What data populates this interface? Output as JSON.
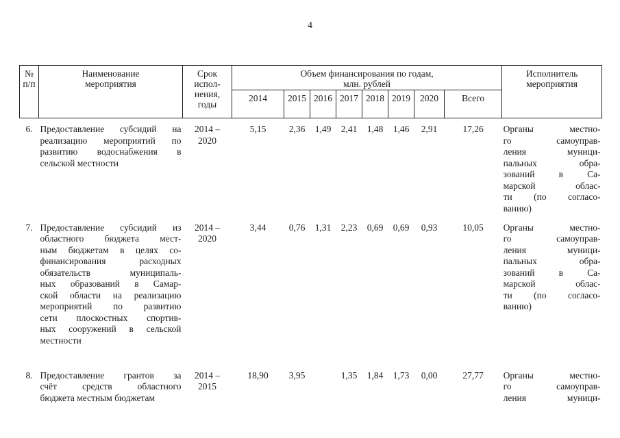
{
  "page_number": "4",
  "table": {
    "header": {
      "col_num": "№\nп/п",
      "col_name": "Наименование\nмероприятия",
      "col_period": "Срок\nиспол-\nнения,\nгоды",
      "col_funding_group": "Объем финансирования по годам,\nмлн. рублей",
      "years": [
        "2014",
        "2015",
        "2016",
        "2017",
        "2018",
        "2019",
        "2020",
        "Всего"
      ],
      "col_executor": "Исполнитель\nмероприятия"
    },
    "rows": [
      {
        "num": "6.",
        "name_lines": [
          "Предоставление субсидий на",
          "реализацию мероприятий по",
          "развитию водоснабжения в",
          "сельской местности"
        ],
        "period": "2014 –\n2020",
        "values": [
          "5,15",
          "2,36",
          "1,49",
          "2,41",
          "1,48",
          "1,46",
          "2,91",
          "17,26"
        ],
        "executor_lines": [
          "Органы местно-",
          "го самоуправ-",
          "ления муници-",
          "пальных обра-",
          "зований в Са-",
          "марской облас-",
          "ти (по согласо-",
          "ванию)"
        ],
        "executor_truncated": false
      },
      {
        "num": "7.",
        "name_lines": [
          "Предоставление субсидий из",
          "областного бюджета мест-",
          "ным бюджетам в целях со-",
          "финансирования расходных",
          "обязательств муниципаль-",
          "ных образований в Самар-",
          "ской области на реализацию",
          "мероприятий по развитию",
          "сети плоскостных спортив-",
          "ных сооружений в сельской",
          "местности"
        ],
        "period": "2014 –\n2020",
        "values": [
          "3,44",
          "0,76",
          "1,31",
          "2,23",
          "0,69",
          "0,69",
          "0,93",
          "10,05"
        ],
        "executor_lines": [
          "Органы местно-",
          "го самоуправ-",
          "ления муници-",
          "пальных обра-",
          "зований в Са-",
          "марской облас-",
          "ти (по согласо-",
          "ванию)"
        ],
        "executor_truncated": false
      },
      {
        "num": "8.",
        "name_lines": [
          "Предоставление грантов за",
          "счёт средств областного",
          "бюджета местным бюджетам"
        ],
        "period": "2014 –\n2015",
        "values": [
          "18,90",
          "3,95",
          "",
          "1,35",
          "1,84",
          "1,73",
          "0,00",
          "27,77"
        ],
        "executor_lines": [
          "Органы местно-",
          "го самоуправ-",
          "ления муници-"
        ],
        "executor_truncated": true
      }
    ]
  }
}
